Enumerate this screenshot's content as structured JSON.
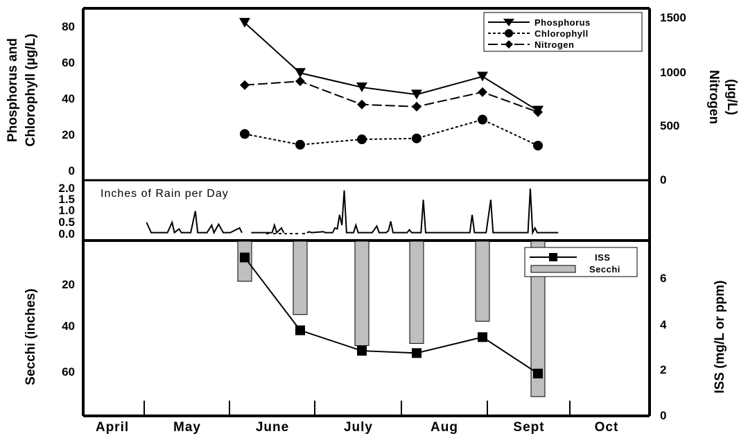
{
  "chart_data": [
    {
      "type": "line",
      "panel": "nutrients",
      "x": [
        "June 1",
        "June 23",
        "July 14",
        "Aug 4",
        "Aug 25",
        "Sept 15"
      ],
      "series": [
        {
          "name": "Phosphorus",
          "axis": "left",
          "marker": "triangle-down",
          "style": "solid",
          "values": [
            82,
            54,
            46,
            42,
            52,
            33
          ]
        },
        {
          "name": "Chlorophyll",
          "axis": "left",
          "marker": "circle",
          "style": "dotted",
          "values": [
            20,
            14,
            17,
            17.5,
            28,
            13.5
          ]
        },
        {
          "name": "Nitrogen",
          "axis": "right",
          "marker": "diamond",
          "style": "dashed",
          "values": [
            880,
            915,
            700,
            680,
            815,
            630
          ]
        }
      ],
      "ylabel_left_lines": [
        "Phosphorus and",
        "Chlorophyll (µg/L)"
      ],
      "ylabel_right_lines": [
        "Nitrogen",
        "(µg/L)"
      ],
      "yticks_left": [
        "80",
        "60",
        "40",
        "20",
        "0"
      ],
      "yticks_right": [
        "1500",
        "1000",
        "500",
        "0"
      ],
      "ylim_left": [
        -5,
        85
      ],
      "ylim_right": [
        0,
        1500
      ],
      "legend_position": "top-right"
    },
    {
      "type": "line",
      "panel": "rain",
      "title": "Inches of Rain per Day",
      "ylabel": "",
      "yticks": [
        "2.0",
        "1.5",
        "1.0",
        "0.5",
        "0.0"
      ],
      "ylim": [
        0,
        2.4
      ],
      "days": [
        [
          1,
          0.6
        ],
        [
          3,
          0.05
        ],
        [
          10,
          0.05
        ],
        [
          12,
          0.6
        ],
        [
          13,
          0.05
        ],
        [
          15,
          0.25
        ],
        [
          16,
          0.05
        ],
        [
          20,
          0.05
        ],
        [
          22,
          1.2
        ],
        [
          23,
          0.05
        ],
        [
          27,
          0.05
        ],
        [
          29,
          0.45
        ],
        [
          30,
          0.05
        ],
        [
          32,
          0.5
        ],
        [
          34,
          0.05
        ],
        [
          35,
          0.05
        ],
        [
          37,
          0.05
        ],
        [
          41,
          0.3
        ],
        [
          42,
          0.05
        ],
        [
          46,
          0.05
        ],
        [
          55,
          0.05
        ],
        [
          56,
          0.45
        ],
        [
          57,
          0.05
        ],
        [
          59,
          0.3
        ],
        [
          60,
          0.05
        ],
        [
          70,
          0.05
        ],
        [
          71,
          0.1
        ],
        [
          72,
          0.05
        ],
        [
          77,
          0.1
        ],
        [
          78,
          0.05
        ],
        [
          81,
          0.05
        ],
        [
          82,
          0.3
        ],
        [
          83,
          0.25
        ],
        [
          84,
          1.0
        ],
        [
          85,
          0.45
        ],
        [
          86,
          2.3
        ],
        [
          87,
          0.05
        ],
        [
          90,
          0.05
        ],
        [
          91,
          0.45
        ],
        [
          92,
          0.05
        ],
        [
          98,
          0.05
        ],
        [
          100,
          0.4
        ],
        [
          101,
          0.05
        ],
        [
          104,
          0.05
        ],
        [
          105,
          0.15
        ],
        [
          106,
          0.65
        ],
        [
          107,
          0.05
        ],
        [
          113,
          0.05
        ],
        [
          114,
          0.2
        ],
        [
          115,
          0.05
        ],
        [
          119,
          0.05
        ],
        [
          120,
          1.8
        ],
        [
          121,
          0.05
        ],
        [
          140,
          0.05
        ],
        [
          141,
          1.0
        ],
        [
          142,
          0.05
        ],
        [
          147,
          0.05
        ],
        [
          149,
          1.8
        ],
        [
          150,
          0.05
        ],
        [
          165,
          0.05
        ],
        [
          166,
          2.4
        ],
        [
          167,
          0.05
        ],
        [
          168,
          0.3
        ],
        [
          169,
          0.05
        ],
        [
          178,
          0.05
        ]
      ]
    },
    {
      "type": "bar+line",
      "panel": "clarity",
      "x": [
        "June 1",
        "June 23",
        "July 14",
        "Aug 4",
        "Aug 25",
        "Sept 15"
      ],
      "series": [
        {
          "name": "Secchi",
          "axis": "left",
          "type": "bar",
          "inverted": true,
          "values": [
            19,
            34,
            48,
            47,
            37,
            71
          ]
        },
        {
          "name": "ISS",
          "axis": "right",
          "type": "line",
          "marker": "square",
          "values": [
            6.9,
            3.7,
            2.8,
            2.7,
            3.4,
            1.8
          ]
        }
      ],
      "ylabel_left": "Secchi (inches)",
      "ylabel_right": "ISS (mg/L or ppm)",
      "yticks_left": [
        "20",
        "40",
        "60"
      ],
      "yticks_right": [
        "6",
        "4",
        "2",
        "0"
      ],
      "ylim_left": [
        0,
        75
      ],
      "ylim_right": [
        0,
        7.6
      ],
      "legend_position": "top-right"
    }
  ],
  "x_axis": {
    "months": [
      "April",
      "May",
      "June",
      "July",
      "Aug",
      "Sept",
      "Oct"
    ]
  }
}
